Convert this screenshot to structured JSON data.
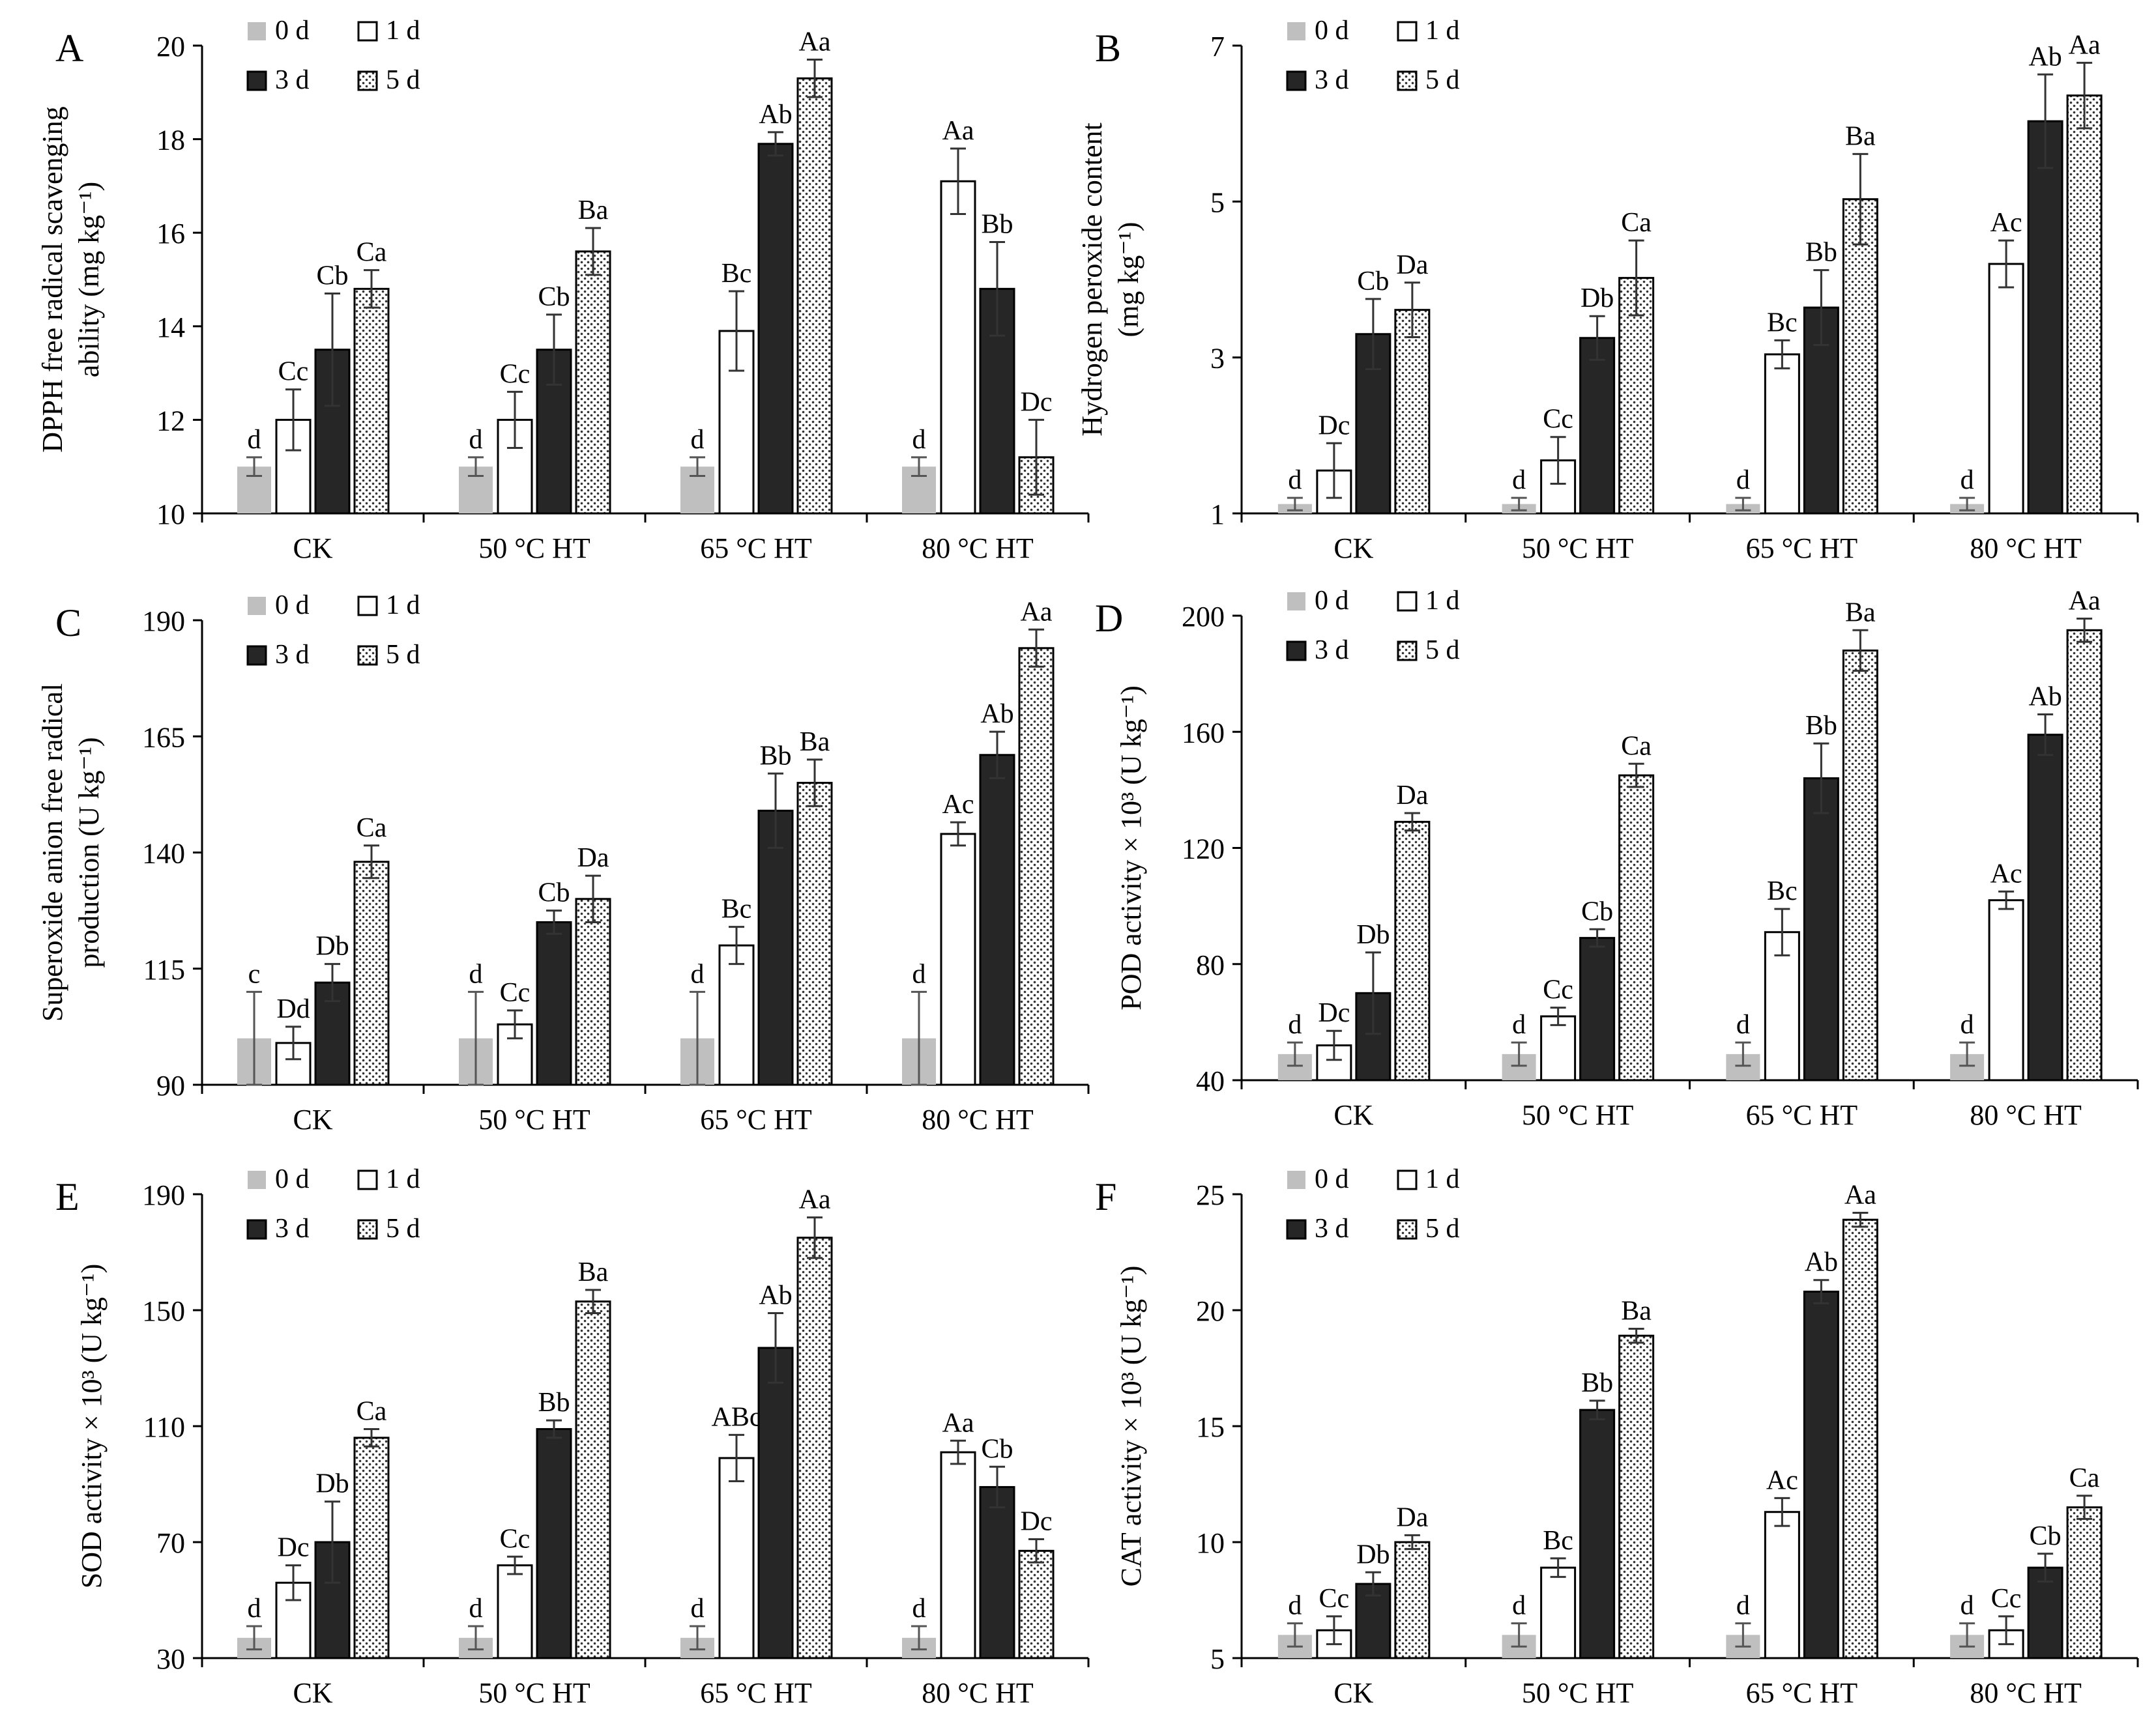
{
  "chart_data": [
    {
      "type": "bar",
      "panel_label": "A",
      "ylabel_lines": [
        "DPPH free radical scavenging",
        "ability (mg kg⁻¹)"
      ],
      "ylim": [
        10,
        20
      ],
      "yticks": [
        10,
        12,
        14,
        16,
        18,
        20
      ],
      "categories": [
        "CK",
        "50 °C HT",
        "65 °C HT",
        "80 °C HT"
      ],
      "legend": [
        "0 d",
        "1 d",
        "3 d",
        "5 d"
      ],
      "series": [
        {
          "name": "0 d",
          "values": [
            11.0,
            11.0,
            11.0,
            11.0
          ],
          "errors": [
            0.2,
            0.2,
            0.2,
            0.2
          ],
          "labels": [
            "d",
            "d",
            "d",
            "d"
          ]
        },
        {
          "name": "1 d",
          "values": [
            12.0,
            12.0,
            13.9,
            17.1
          ],
          "errors": [
            0.65,
            0.6,
            0.85,
            0.7
          ],
          "labels": [
            "Cc",
            "Cc",
            "Bc",
            "Aa"
          ]
        },
        {
          "name": "3 d",
          "values": [
            13.5,
            13.5,
            17.9,
            14.8
          ],
          "errors": [
            1.2,
            0.75,
            0.25,
            1.0
          ],
          "labels": [
            "Cb",
            "Cb",
            "Ab",
            "Bb"
          ]
        },
        {
          "name": "5 d",
          "values": [
            14.8,
            15.6,
            19.3,
            11.2
          ],
          "errors": [
            0.4,
            0.5,
            0.4,
            0.8
          ],
          "labels": [
            "Ca",
            "Ba",
            "Aa",
            "Dc"
          ]
        }
      ]
    },
    {
      "type": "bar",
      "panel_label": "B",
      "ylabel_lines": [
        "Hydrogen peroxide content",
        "(mg kg⁻¹)"
      ],
      "ylim": [
        1,
        7
      ],
      "yticks": [
        1,
        3,
        5,
        7
      ],
      "categories": [
        "CK",
        "50 °C HT",
        "65 °C HT",
        "80 °C HT"
      ],
      "legend": [
        "0 d",
        "1 d",
        "3 d",
        "5 d"
      ],
      "series": [
        {
          "name": "0 d",
          "values": [
            1.12,
            1.12,
            1.12,
            1.12
          ],
          "errors": [
            0.08,
            0.08,
            0.08,
            0.08
          ],
          "labels": [
            "d",
            "d",
            "d",
            "d"
          ]
        },
        {
          "name": "1 d",
          "values": [
            1.55,
            1.68,
            3.04,
            4.2
          ],
          "errors": [
            0.35,
            0.3,
            0.18,
            0.3
          ],
          "labels": [
            "Dc",
            "Cc",
            "Bc",
            "Ac"
          ]
        },
        {
          "name": "3 d",
          "values": [
            3.3,
            3.25,
            3.64,
            6.03
          ],
          "errors": [
            0.45,
            0.28,
            0.48,
            0.6
          ],
          "labels": [
            "Cb",
            "Db",
            "Bb",
            "Ab"
          ]
        },
        {
          "name": "5 d",
          "values": [
            3.61,
            4.02,
            5.03,
            6.36
          ],
          "errors": [
            0.35,
            0.48,
            0.58,
            0.42
          ],
          "labels": [
            "Da",
            "Ca",
            "Ba",
            "Aa"
          ]
        }
      ]
    },
    {
      "type": "bar",
      "panel_label": "C",
      "ylabel_lines": [
        "Superoxide anion free radical",
        "production (U kg⁻¹)"
      ],
      "ylim": [
        90,
        190
      ],
      "yticks": [
        90,
        115,
        140,
        165,
        190
      ],
      "categories": [
        "CK",
        "50 °C HT",
        "65 °C HT",
        "80 °C HT"
      ],
      "legend": [
        "0 d",
        "1 d",
        "3 d",
        "5 d"
      ],
      "series": [
        {
          "name": "0 d",
          "values": [
            100.0,
            100.0,
            100.0,
            100.0
          ],
          "errors": [
            10,
            10,
            10,
            10
          ],
          "labels": [
            "c",
            "d",
            "d",
            "d"
          ]
        },
        {
          "name": "1 d",
          "values": [
            99.0,
            103.0,
            120.0,
            144.0
          ],
          "errors": [
            3.5,
            3,
            4,
            2.5
          ],
          "labels": [
            "Dd",
            "Cc",
            "Bc",
            "Ac"
          ]
        },
        {
          "name": "3 d",
          "values": [
            112.0,
            125.0,
            149.0,
            161.0
          ],
          "errors": [
            4,
            2.5,
            8,
            5
          ],
          "labels": [
            "Db",
            "Cb",
            "Bb",
            "Ab"
          ]
        },
        {
          "name": "5 d",
          "values": [
            138.0,
            130.0,
            155.0,
            184.0
          ],
          "errors": [
            3.5,
            5,
            5,
            4
          ],
          "labels": [
            "Ca",
            "Da",
            "Ba",
            "Aa"
          ]
        }
      ]
    },
    {
      "type": "bar",
      "panel_label": "D",
      "ylabel_lines": [
        "POD activity × 10³ (U kg⁻¹)"
      ],
      "ylim": [
        40,
        200
      ],
      "yticks": [
        40,
        80,
        120,
        160,
        200
      ],
      "categories": [
        "CK",
        "50 °C HT",
        "65 °C HT",
        "80 °C HT"
      ],
      "legend": [
        "0 d",
        "1 d",
        "3 d",
        "5 d"
      ],
      "series": [
        {
          "name": "0 d",
          "values": [
            49.0,
            49.0,
            49.0,
            49.0
          ],
          "errors": [
            4,
            4,
            4,
            4
          ],
          "labels": [
            "d",
            "d",
            "d",
            "d"
          ]
        },
        {
          "name": "1 d",
          "values": [
            52.0,
            62.0,
            91.0,
            102.0
          ],
          "errors": [
            5,
            3,
            8,
            3
          ],
          "labels": [
            "Dc",
            "Cc",
            "Bc",
            "Ac"
          ]
        },
        {
          "name": "3 d",
          "values": [
            70.0,
            89.0,
            144.0,
            159.0
          ],
          "errors": [
            14,
            3,
            12,
            7
          ],
          "labels": [
            "Db",
            "Cb",
            "Bb",
            "Ab"
          ]
        },
        {
          "name": "5 d",
          "values": [
            129.0,
            145.0,
            188.0,
            195.0
          ],
          "errors": [
            3,
            4,
            7,
            4
          ],
          "labels": [
            "Da",
            "Ca",
            "Ba",
            "Aa"
          ]
        }
      ]
    },
    {
      "type": "bar",
      "panel_label": "E",
      "ylabel_lines": [
        "SOD activity × 10³ (U kg⁻¹)"
      ],
      "ylim": [
        30,
        190
      ],
      "yticks": [
        30,
        70,
        110,
        150,
        190
      ],
      "categories": [
        "CK",
        "50 °C HT",
        "65 °C HT",
        "80 °C HT"
      ],
      "legend": [
        "0 d",
        "1 d",
        "3 d",
        "5 d"
      ],
      "series": [
        {
          "name": "0 d",
          "values": [
            37.0,
            37.0,
            37.0,
            37.0
          ],
          "errors": [
            4,
            4,
            4,
            4
          ],
          "labels": [
            "d",
            "d",
            "d",
            "d"
          ]
        },
        {
          "name": "1 d",
          "values": [
            56.0,
            62.0,
            99.0,
            101.0
          ],
          "errors": [
            6,
            3,
            8,
            4
          ],
          "labels": [
            "Dc",
            "Cc",
            "ABc",
            "Aa"
          ]
        },
        {
          "name": "3 d",
          "values": [
            70.0,
            109.0,
            137.0,
            89.0
          ],
          "errors": [
            14,
            3,
            12,
            7
          ],
          "labels": [
            "Db",
            "Bb",
            "Ab",
            "Cb"
          ]
        },
        {
          "name": "5 d",
          "values": [
            106.0,
            153.0,
            175.0,
            67.0
          ],
          "errors": [
            3,
            4,
            7,
            4
          ],
          "labels": [
            "Ca",
            "Ba",
            "Aa",
            "Dc"
          ]
        }
      ]
    },
    {
      "type": "bar",
      "panel_label": "F",
      "ylabel_lines": [
        "CAT activity × 10³ (U kg⁻¹)"
      ],
      "ylim": [
        5,
        25
      ],
      "yticks": [
        5,
        10,
        15,
        20,
        25
      ],
      "categories": [
        "CK",
        "50 °C HT",
        "65 °C HT",
        "80 °C HT"
      ],
      "legend": [
        "0 d",
        "1 d",
        "3 d",
        "5 d"
      ],
      "series": [
        {
          "name": "0 d",
          "values": [
            6.0,
            6.0,
            6.0,
            6.0
          ],
          "errors": [
            0.5,
            0.5,
            0.5,
            0.5
          ],
          "labels": [
            "d",
            "d",
            "d",
            "d"
          ]
        },
        {
          "name": "1 d",
          "values": [
            6.2,
            8.9,
            11.3,
            6.2
          ],
          "errors": [
            0.6,
            0.4,
            0.6,
            0.6
          ],
          "labels": [
            "Cc",
            "Bc",
            "Ac",
            "Cc"
          ]
        },
        {
          "name": "3 d",
          "values": [
            8.2,
            15.7,
            20.8,
            8.9
          ],
          "errors": [
            0.5,
            0.4,
            0.5,
            0.6
          ],
          "labels": [
            "Db",
            "Bb",
            "Ab",
            "Cb"
          ]
        },
        {
          "name": "5 d",
          "values": [
            10.0,
            18.9,
            23.9,
            11.5
          ],
          "errors": [
            0.3,
            0.3,
            0.3,
            0.5
          ],
          "labels": [
            "Da",
            "Ba",
            "Aa",
            "Ca"
          ]
        }
      ]
    }
  ]
}
